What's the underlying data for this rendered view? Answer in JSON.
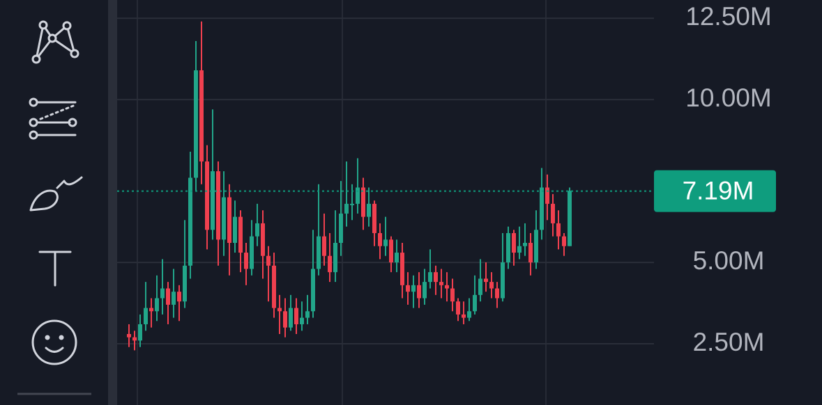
{
  "chart_data": {
    "type": "candlestick",
    "open": [
      2.8,
      2.7,
      2.6,
      3.1,
      3.6,
      3.5,
      3.9,
      4.2,
      3.7,
      4.1,
      3.8,
      4.9,
      7.6,
      10.9,
      8.1,
      6.0,
      7.8,
      5.7,
      7.0,
      5.6,
      6.4,
      5.3,
      4.8,
      5.8,
      6.2,
      5.2,
      4.9,
      3.6,
      3.5,
      3.0,
      3.6,
      3.1,
      3.3,
      3.5,
      4.8,
      5.8,
      5.2,
      4.7,
      5.6,
      6.5,
      6.8,
      6.8,
      7.3,
      6.4,
      6.8,
      5.9,
      5.5,
      5.7,
      5.0,
      5.3,
      4.3,
      4.1,
      4.3,
      3.9,
      4.4,
      4.7,
      4.4,
      4.3,
      4.2,
      3.8,
      3.4,
      3.3,
      3.5,
      4.0,
      4.5,
      4.4,
      4.2,
      3.9,
      5.0,
      5.9,
      5.3,
      5.5,
      5.6,
      5.0,
      6.0,
      7.3,
      6.8,
      6.2,
      5.8,
      5.5
    ],
    "high": [
      3.1,
      2.9,
      3.4,
      4.4,
      3.9,
      4.6,
      5.1,
      4.4,
      4.8,
      4.3,
      6.3,
      8.4,
      11.8,
      12.4,
      8.6,
      9.7,
      8.1,
      7.8,
      7.4,
      6.9,
      6.6,
      5.6,
      6.3,
      6.8,
      6.6,
      5.5,
      5.3,
      4.0,
      3.9,
      4.0,
      3.9,
      3.8,
      4.0,
      6.0,
      7.4,
      6.5,
      5.9,
      6.6,
      7.5,
      8.1,
      7.4,
      8.2,
      7.6,
      7.3,
      6.9,
      6.2,
      6.4,
      5.8,
      5.7,
      5.6,
      4.7,
      4.6,
      4.7,
      4.8,
      5.4,
      4.9,
      4.8,
      4.7,
      4.5,
      3.9,
      3.8,
      3.9,
      4.6,
      5.1,
      5.0,
      4.7,
      4.4,
      5.9,
      6.1,
      6.0,
      6.1,
      6.2,
      5.9,
      6.6,
      7.9,
      7.7,
      7.1,
      6.6,
      5.9,
      7.3
    ],
    "low": [
      2.4,
      2.3,
      2.4,
      2.9,
      3.0,
      3.2,
      3.4,
      3.1,
      3.3,
      3.2,
      3.6,
      4.5,
      7.2,
      7.4,
      5.4,
      5.7,
      4.9,
      5.2,
      4.6,
      5.3,
      4.7,
      4.3,
      4.6,
      5.5,
      4.5,
      3.8,
      3.3,
      2.8,
      2.7,
      2.9,
      2.8,
      2.9,
      3.1,
      3.3,
      4.6,
      4.9,
      4.4,
      4.4,
      5.2,
      6.1,
      6.3,
      6.5,
      6.0,
      6.1,
      5.5,
      5.1,
      5.2,
      4.7,
      4.7,
      3.9,
      3.7,
      3.6,
      3.6,
      3.7,
      4.2,
      4.0,
      3.9,
      3.8,
      3.5,
      3.2,
      3.1,
      3.2,
      3.4,
      3.8,
      4.1,
      3.9,
      3.6,
      3.8,
      4.8,
      4.9,
      5.1,
      5.2,
      4.6,
      4.8,
      5.7,
      6.3,
      5.8,
      5.4,
      5.2,
      5.5
    ],
    "close": [
      2.7,
      2.6,
      3.1,
      3.6,
      3.5,
      3.9,
      4.2,
      3.7,
      4.1,
      3.8,
      4.9,
      7.6,
      10.9,
      8.1,
      6.0,
      7.8,
      5.7,
      7.0,
      5.6,
      6.4,
      5.3,
      4.8,
      5.8,
      6.2,
      5.2,
      4.9,
      3.6,
      3.5,
      3.0,
      3.6,
      3.1,
      3.3,
      3.5,
      4.8,
      5.8,
      5.2,
      4.7,
      5.6,
      6.5,
      6.8,
      6.8,
      7.3,
      6.4,
      6.8,
      5.9,
      5.5,
      5.7,
      5.0,
      5.3,
      4.3,
      4.1,
      4.3,
      3.9,
      4.4,
      4.7,
      4.4,
      4.3,
      4.2,
      3.8,
      3.4,
      3.3,
      3.5,
      4.0,
      4.5,
      4.4,
      4.2,
      3.9,
      5.0,
      5.9,
      5.3,
      5.5,
      5.6,
      5.0,
      6.0,
      7.3,
      6.8,
      6.2,
      5.8,
      5.5,
      7.2
    ],
    "up_color": "#22a68a",
    "down_color": "#f0404f",
    "ylim": [
      0.62,
      13.06
    ],
    "yticks": [
      {
        "value": 2.5,
        "label": "2.50M"
      },
      {
        "value": 5,
        "label": "5.00M"
      },
      {
        "value": 10,
        "label": "10.00M"
      },
      {
        "value": 12.5,
        "label": "12.50M"
      }
    ],
    "grid": true,
    "last_price": {
      "value": 7.19,
      "label": "7.19M",
      "color": "#0f9d7e"
    }
  }
}
